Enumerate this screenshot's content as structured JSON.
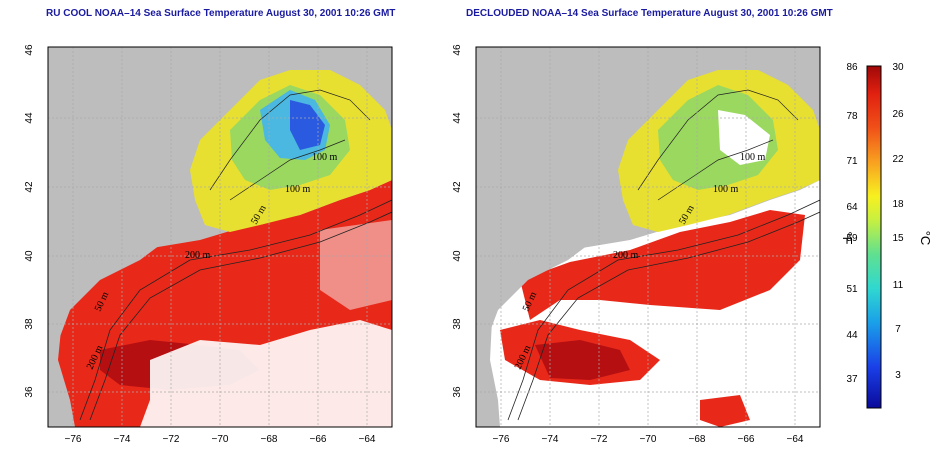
{
  "panels": [
    {
      "title": "RU COOL NOAA–14 Sea Surface Temperature August 30, 2001 10:26 GMT",
      "contour_labels": [
        "100 m",
        "100 m",
        "50 m",
        "200 m",
        "50 m",
        "200 m"
      ]
    },
    {
      "title": "DECLOUDED NOAA–14 Sea Surface Temperature August 30, 2001 10:26 GMT",
      "contour_labels": [
        "100 m",
        "100 m",
        "50 m",
        "200 m",
        "50 m",
        "200 m"
      ]
    }
  ],
  "axes": {
    "longitude_ticks": [
      "−76",
      "−74",
      "−72",
      "−70",
      "−68",
      "−66",
      "−64"
    ],
    "latitude_ticks": [
      "36",
      "38",
      "40",
      "42",
      "44",
      "46"
    ]
  },
  "colorbar": {
    "fahrenheit_ticks": [
      "86",
      "78",
      "71",
      "64",
      "59",
      "51",
      "44",
      "37"
    ],
    "celsius_ticks": [
      "30",
      "26",
      "22",
      "18",
      "15",
      "11",
      "7",
      "3"
    ],
    "fahrenheit_unit": "°F",
    "celsius_unit": "°C"
  },
  "colors": {
    "land": "#bdbdbd",
    "cloud": "#ffffff",
    "title": "#1a1aa0",
    "warm": "#e8291a",
    "hot": "#b50f12",
    "cool": "#4ab8e0",
    "cold": "#2a5ae0"
  }
}
